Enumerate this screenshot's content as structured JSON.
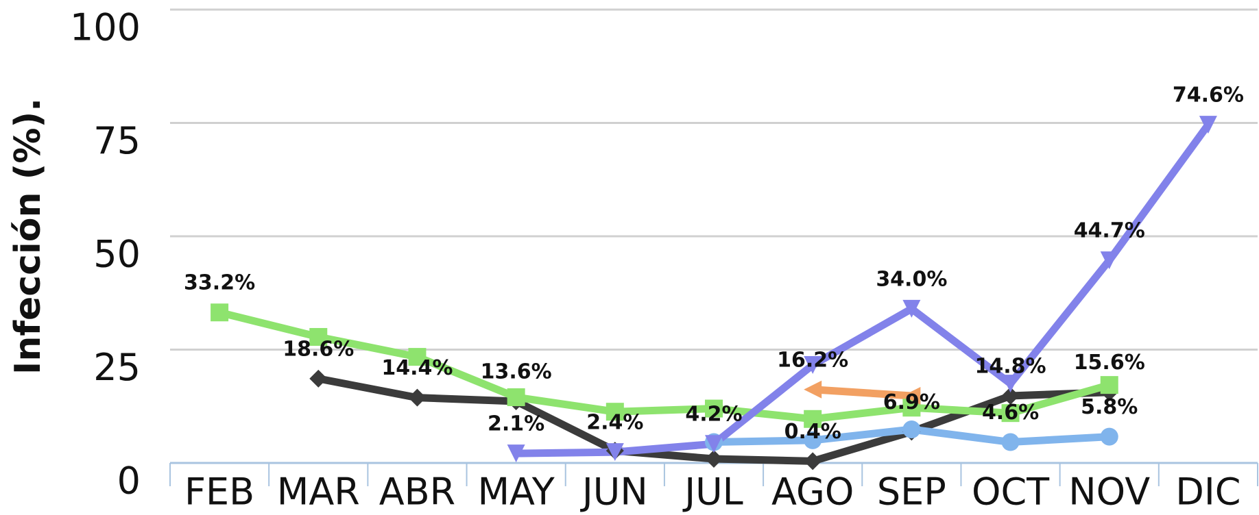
{
  "chart_data": {
    "type": "line",
    "y_label": "Infección (%).",
    "categories": [
      "FEB",
      "MAR",
      "ABR",
      "MAY",
      "JUN",
      "JUL",
      "AGO",
      "SEP",
      "OCT",
      "NOV",
      "DIC"
    ],
    "ylim": [
      0,
      100
    ],
    "yticks": [
      0,
      25,
      50,
      75,
      100
    ],
    "grid": true,
    "series": [
      {
        "color": "#3b3b3b",
        "marker": "diamond",
        "values": [
          null,
          18.6,
          14.4,
          13.6,
          2.7,
          0.9,
          0.4,
          6.9,
          14.8,
          15.6,
          null
        ],
        "value_labels": [
          null,
          "18.6%",
          "14.4%",
          "13.6%",
          null,
          null,
          "0.4%",
          "6.9%",
          "14.8%",
          "15.6%",
          null
        ]
      },
      {
        "color": "#8ee36e",
        "marker": "square",
        "values": [
          33.2,
          27.8,
          23.4,
          14.5,
          11.3,
          12.0,
          9.7,
          12.2,
          11.0,
          17.2,
          null
        ],
        "value_labels": [
          "33.2%",
          null,
          null,
          null,
          null,
          null,
          null,
          null,
          null,
          null,
          null
        ]
      },
      {
        "color": "#80b4ec",
        "marker": "circle",
        "values": [
          null,
          null,
          null,
          null,
          null,
          4.6,
          5.0,
          7.4,
          4.6,
          5.8,
          null
        ],
        "value_labels": [
          null,
          null,
          null,
          null,
          null,
          null,
          null,
          null,
          "4.6%",
          "5.8%",
          null
        ]
      },
      {
        "color": "#f2a062",
        "marker": "triangle-left",
        "values": [
          null,
          null,
          null,
          null,
          null,
          null,
          16.2,
          14.8,
          null,
          null,
          null
        ],
        "value_labels": [
          null,
          null,
          null,
          null,
          null,
          null,
          "16.2%",
          null,
          null,
          null,
          null
        ]
      },
      {
        "color": "#8282ea",
        "marker": "triangle-down",
        "values": [
          null,
          null,
          null,
          2.1,
          2.4,
          4.2,
          21.6,
          34.0,
          17.5,
          44.7,
          74.6
        ],
        "value_labels": [
          null,
          null,
          null,
          "2.1%",
          "2.4%",
          "4.2%",
          null,
          "34.0%",
          null,
          "44.7%",
          "74.6%"
        ]
      }
    ]
  }
}
